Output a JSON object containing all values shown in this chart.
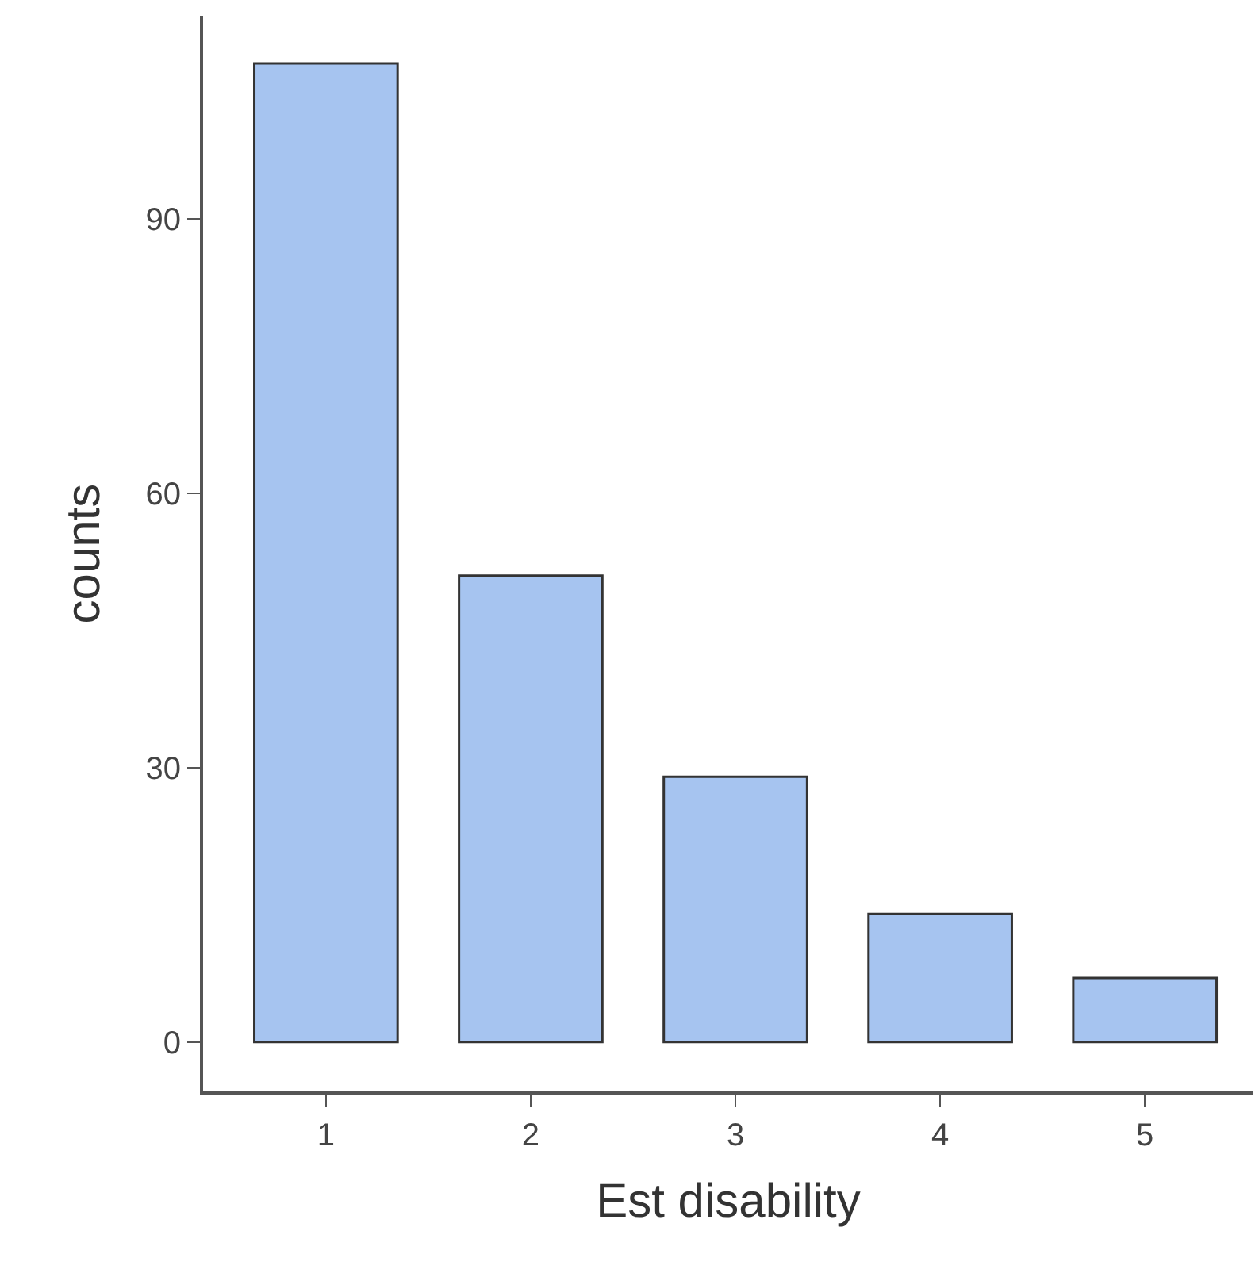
{
  "chart_data": {
    "type": "bar",
    "xlabel": "Est disability",
    "ylabel": "counts",
    "categories": [
      "1",
      "2",
      "3",
      "4",
      "5"
    ],
    "values": [
      107,
      51,
      29,
      14,
      7
    ],
    "color": "#a6c4f0",
    "ylim": [
      -5.4,
      112.2
    ],
    "yticks": [
      0,
      30,
      60,
      90
    ],
    "grid": false
  }
}
